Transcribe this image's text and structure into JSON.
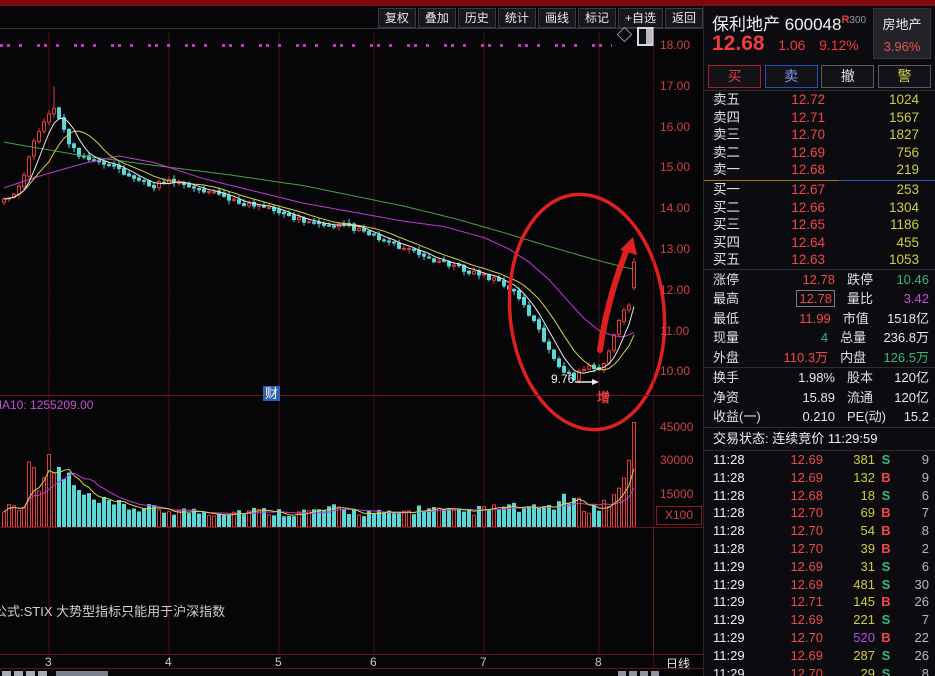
{
  "toolbar": {
    "buttons": [
      "复权",
      "叠加",
      "历史",
      "统计",
      "画线",
      "标记",
      "+自选",
      "返回"
    ]
  },
  "chart": {
    "watermark": "财",
    "ma_label": "MA10: 1255209.00",
    "annotations": {
      "low_label": "9.76",
      "note": "增"
    },
    "y_axis": [
      "18.00",
      "17.00",
      "16.00",
      "15.00",
      "14.00",
      "13.00",
      "12.00",
      "11.00",
      "10.00"
    ],
    "vol_axis": [
      "45000",
      "30000",
      "15000"
    ],
    "vol_unit": "X100",
    "x_axis": [
      "3",
      "4",
      "5",
      "6",
      "7",
      "8"
    ],
    "period_label": "日线",
    "formula_note": "公式:STIX 大势型指标只能用于沪深指数"
  },
  "chart_data": {
    "type": "candlestick+volume",
    "title": "保利地产 600048 日线",
    "price_axis_range": [
      10,
      18
    ],
    "volume_axis_range": [
      0,
      45000
    ],
    "volume_unit": "X100",
    "num_candles": 127,
    "month_grid_x": [
      49,
      169,
      279,
      374,
      484,
      599
    ],
    "close_anchors": [
      [
        0,
        14.2
      ],
      [
        2,
        14.35
      ],
      [
        4,
        14.8
      ],
      [
        6,
        15.6
      ],
      [
        8,
        16.15
      ],
      [
        10,
        16.5
      ],
      [
        11,
        16.2
      ],
      [
        13,
        15.6
      ],
      [
        15,
        15.3
      ],
      [
        18,
        15.2
      ],
      [
        22,
        15.05
      ],
      [
        26,
        14.7
      ],
      [
        30,
        14.55
      ],
      [
        33,
        14.75
      ],
      [
        36,
        14.55
      ],
      [
        40,
        14.4
      ],
      [
        44,
        14.28
      ],
      [
        48,
        14.12
      ],
      [
        52,
        14.0
      ],
      [
        56,
        13.85
      ],
      [
        60,
        13.7
      ],
      [
        64,
        13.55
      ],
      [
        66,
        13.5
      ],
      [
        68,
        13.62
      ],
      [
        72,
        13.4
      ],
      [
        76,
        13.2
      ],
      [
        80,
        13.0
      ],
      [
        84,
        12.82
      ],
      [
        88,
        12.65
      ],
      [
        92,
        12.5
      ],
      [
        96,
        12.35
      ],
      [
        99,
        12.22
      ],
      [
        101,
        12.05
      ],
      [
        103,
        11.78
      ],
      [
        105,
        11.42
      ],
      [
        107,
        11.0
      ],
      [
        109,
        10.55
      ],
      [
        111,
        10.15
      ],
      [
        113,
        9.9
      ],
      [
        114,
        9.82
      ],
      [
        115,
        10.05
      ],
      [
        117,
        10.15
      ],
      [
        119,
        10.0
      ],
      [
        121,
        10.5
      ],
      [
        122,
        10.9
      ],
      [
        123,
        11.25
      ],
      [
        124,
        11.5
      ],
      [
        125,
        11.62
      ],
      [
        126,
        12.68
      ]
    ],
    "ma_green_anchors": [
      [
        0,
        15.62
      ],
      [
        15,
        15.3
      ],
      [
        30,
        15.05
      ],
      [
        45,
        14.82
      ],
      [
        60,
        14.55
      ],
      [
        70,
        14.3
      ],
      [
        80,
        14.05
      ],
      [
        90,
        13.75
      ],
      [
        100,
        13.4
      ],
      [
        108,
        13.1
      ],
      [
        115,
        12.85
      ],
      [
        120,
        12.68
      ],
      [
        126,
        12.5
      ]
    ],
    "ma_magenta_anchors": [
      [
        0,
        14.5
      ],
      [
        8,
        14.82
      ],
      [
        16,
        15.1
      ],
      [
        23,
        15.28
      ],
      [
        30,
        15.12
      ],
      [
        40,
        14.72
      ],
      [
        50,
        14.42
      ],
      [
        60,
        14.12
      ],
      [
        70,
        13.9
      ],
      [
        80,
        13.68
      ],
      [
        88,
        13.55
      ],
      [
        96,
        13.28
      ],
      [
        101,
        13.0
      ],
      [
        105,
        12.68
      ],
      [
        109,
        12.25
      ],
      [
        113,
        11.7
      ],
      [
        116,
        11.3
      ],
      [
        119,
        11.0
      ],
      [
        122,
        10.87
      ],
      [
        124,
        10.85
      ],
      [
        126,
        10.95
      ]
    ],
    "volume_anchors": [
      [
        0,
        8500
      ],
      [
        4,
        11000
      ],
      [
        6,
        38000
      ],
      [
        7,
        20000
      ],
      [
        9,
        26000
      ],
      [
        12,
        24000
      ],
      [
        15,
        15000
      ],
      [
        18,
        11000
      ],
      [
        22,
        9500
      ],
      [
        28,
        8000
      ],
      [
        35,
        7000
      ],
      [
        42,
        6500
      ],
      [
        50,
        7200
      ],
      [
        58,
        6200
      ],
      [
        66,
        7800
      ],
      [
        72,
        6400
      ],
      [
        78,
        5600
      ],
      [
        84,
        8400
      ],
      [
        90,
        6200
      ],
      [
        96,
        7600
      ],
      [
        101,
        8800
      ],
      [
        105,
        7200
      ],
      [
        109,
        9500
      ],
      [
        113,
        12000
      ],
      [
        116,
        9200
      ],
      [
        119,
        8000
      ],
      [
        121,
        12500
      ],
      [
        122,
        14500
      ],
      [
        123,
        17500
      ],
      [
        124,
        22000
      ],
      [
        125,
        30000
      ],
      [
        126,
        47000
      ]
    ],
    "today": {
      "open": 12.05,
      "high": 12.78,
      "low": 11.99,
      "close": 12.68
    },
    "low_point": {
      "index": 114,
      "price": 9.76
    },
    "peak_high": {
      "index": 10,
      "price": 16.98
    }
  },
  "quote": {
    "name": "保利地产",
    "code": "600048",
    "flag_r": "R",
    "flag_300": "300",
    "sector": {
      "name": "房地产",
      "change": "3.96%"
    },
    "price": "12.68",
    "change": "1.06",
    "change_pct": "9.12%",
    "actions": [
      {
        "label": "买",
        "kind": "buy"
      },
      {
        "label": "卖",
        "kind": "sell"
      },
      {
        "label": "撤",
        "kind": "cancel"
      },
      {
        "label": "警",
        "kind": "alert"
      }
    ],
    "asks": [
      {
        "label": "卖五",
        "price": "12.72",
        "vol": "1024"
      },
      {
        "label": "卖四",
        "price": "12.71",
        "vol": "1567"
      },
      {
        "label": "卖三",
        "price": "12.70",
        "vol": "1827"
      },
      {
        "label": "卖二",
        "price": "12.69",
        "vol": "756"
      },
      {
        "label": "卖一",
        "price": "12.68",
        "vol": "219"
      }
    ],
    "bids": [
      {
        "label": "买一",
        "price": "12.67",
        "vol": "253"
      },
      {
        "label": "买二",
        "price": "12.66",
        "vol": "1304"
      },
      {
        "label": "买三",
        "price": "12.65",
        "vol": "1186"
      },
      {
        "label": "买四",
        "price": "12.64",
        "vol": "455"
      },
      {
        "label": "买五",
        "price": "12.63",
        "vol": "1053"
      }
    ],
    "stats": [
      [
        {
          "k": "涨停",
          "v": "12.78",
          "c": "red"
        },
        {
          "k": "跌停",
          "v": "10.46",
          "c": "green"
        }
      ],
      [
        {
          "k": "最高",
          "v": "12.78",
          "c": "red",
          "boxed": true
        },
        {
          "k": "量比",
          "v": "3.42",
          "c": "magenta"
        }
      ],
      [
        {
          "k": "最低",
          "v": "11.99",
          "c": "red"
        },
        {
          "k": "市值",
          "v": "1518亿",
          "c": "white"
        }
      ],
      [
        {
          "k": "现量",
          "v": "4",
          "c": "green"
        },
        {
          "k": "总量",
          "v": "236.8万",
          "c": "white"
        }
      ],
      [
        {
          "k": "外盘",
          "v": "110.3万",
          "c": "red"
        },
        {
          "k": "内盘",
          "v": "126.5万",
          "c": "green"
        }
      ],
      [
        {
          "k": "换手",
          "v": "1.98%",
          "c": "white"
        },
        {
          "k": "股本",
          "v": "120亿",
          "c": "white"
        }
      ],
      [
        {
          "k": "净资",
          "v": "15.89",
          "c": "white"
        },
        {
          "k": "流通",
          "v": "120亿",
          "c": "white"
        }
      ],
      [
        {
          "k": "收益(一)",
          "v": "0.210",
          "c": "white"
        },
        {
          "k": "PE(动)",
          "v": "15.2",
          "c": "white"
        }
      ]
    ],
    "session": {
      "text": "交易状态: 连续竞价 11:29:59"
    },
    "ticks": [
      {
        "t": "11:28",
        "p": "12.69",
        "v": "381",
        "s": "S",
        "n": "9"
      },
      {
        "t": "11:28",
        "p": "12.69",
        "v": "132",
        "s": "B",
        "n": "9"
      },
      {
        "t": "11:28",
        "p": "12.68",
        "v": "18",
        "s": "S",
        "n": "6"
      },
      {
        "t": "11:28",
        "p": "12.70",
        "v": "69",
        "s": "B",
        "n": "7"
      },
      {
        "t": "11:28",
        "p": "12.70",
        "v": "54",
        "s": "B",
        "n": "8"
      },
      {
        "t": "11:28",
        "p": "12.70",
        "v": "39",
        "s": "B",
        "n": "2"
      },
      {
        "t": "11:29",
        "p": "12.69",
        "v": "31",
        "s": "S",
        "n": "6"
      },
      {
        "t": "11:29",
        "p": "12.69",
        "v": "481",
        "s": "S",
        "n": "30"
      },
      {
        "t": "11:29",
        "p": "12.71",
        "v": "145",
        "s": "B",
        "n": "26"
      },
      {
        "t": "11:29",
        "p": "12.69",
        "v": "221",
        "s": "S",
        "n": "7"
      },
      {
        "t": "11:29",
        "p": "12.70",
        "v": "520",
        "s": "B",
        "n": "22",
        "vc": "purple"
      },
      {
        "t": "11:29",
        "p": "12.69",
        "v": "287",
        "s": "S",
        "n": "26"
      },
      {
        "t": "11:29",
        "p": "12.70",
        "v": "29",
        "s": "S",
        "n": "8"
      }
    ]
  },
  "colors": {
    "up": "#e23b3b",
    "down": "#5ad8d8",
    "ma5": "#e8e8e8",
    "ma10": "#cfd447",
    "ma20": "#c23ad6",
    "ma60": "#4a9e4a",
    "annotation": "#e01f1f",
    "axis_text": "#d24144",
    "red": "#f0484a",
    "green": "#35b87a",
    "magenta": "#c94fd6",
    "white": "#e8e8e8",
    "purple": "#b44ae0",
    "yellow": "#cfcf3a"
  }
}
